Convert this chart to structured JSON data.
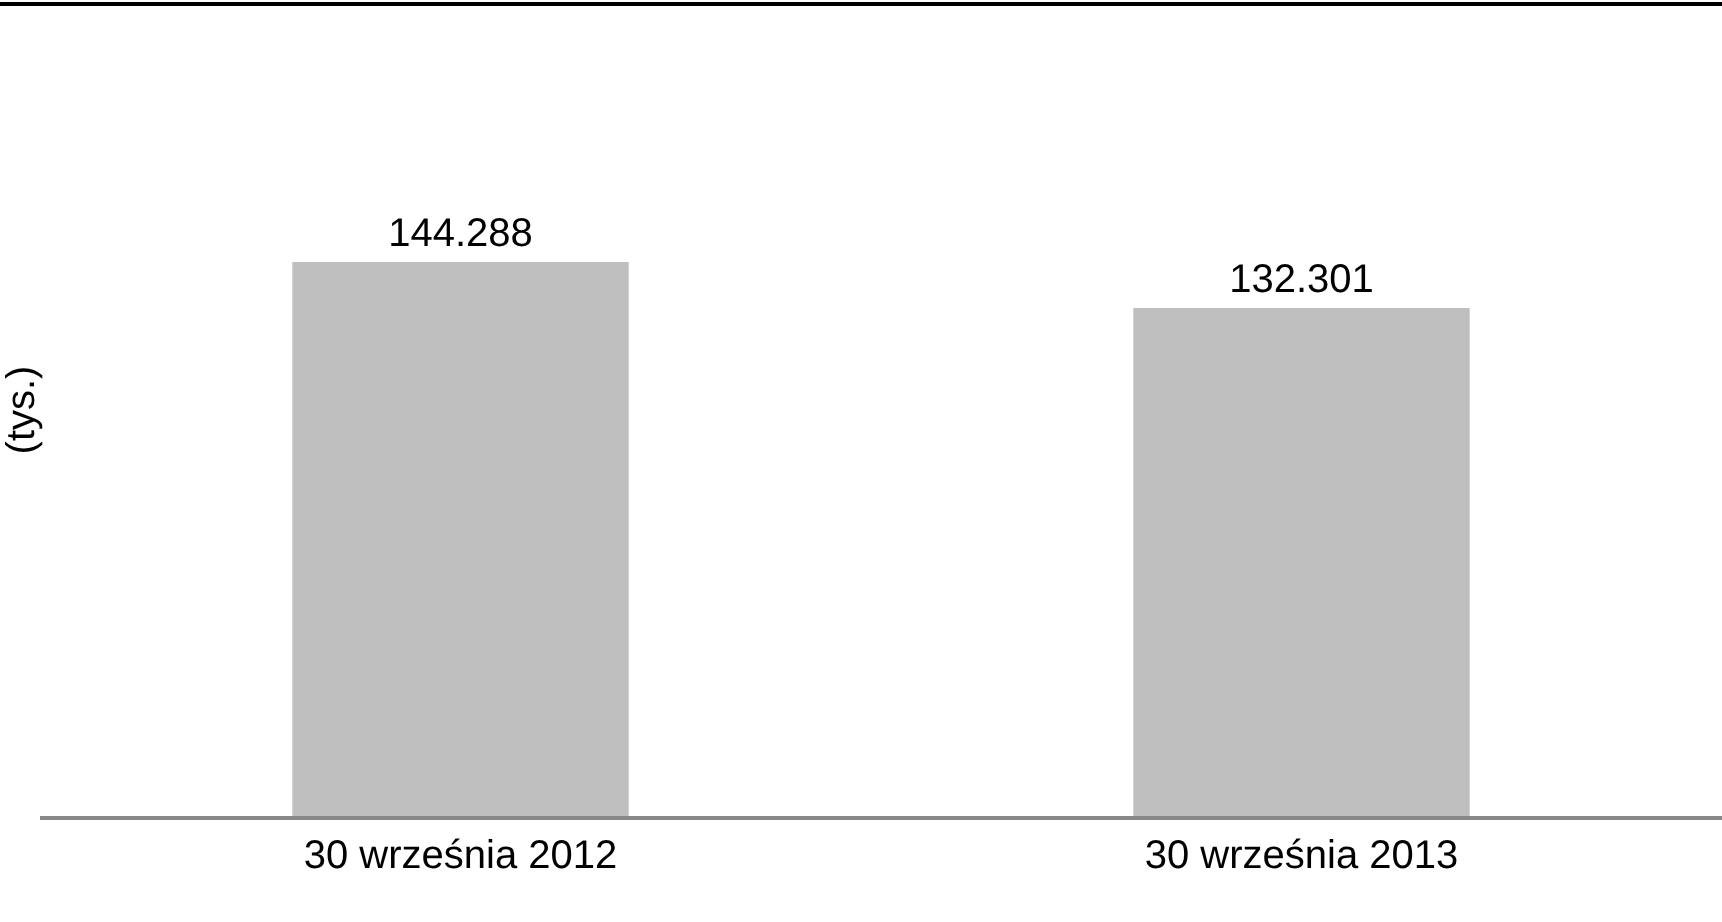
{
  "chart_data": {
    "type": "bar",
    "ylabel": "(tys.)",
    "categories": [
      "30 września 2012",
      "30 września 2013"
    ],
    "values": [
      144.288,
      132.301
    ],
    "color": "#bfbfbf",
    "data_labels": true
  }
}
